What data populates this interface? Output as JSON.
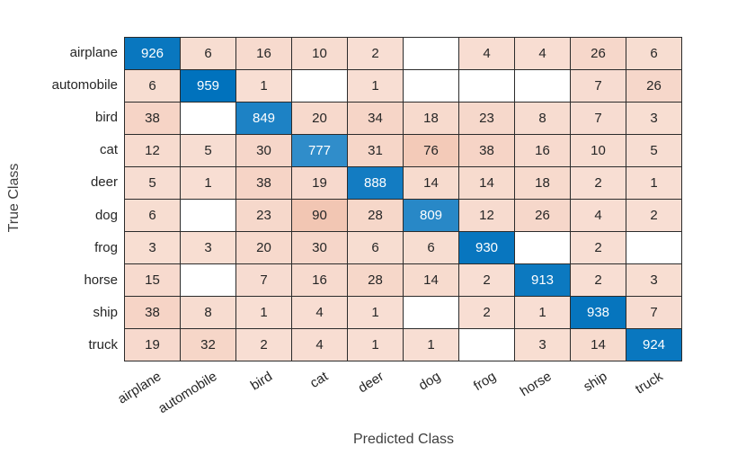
{
  "colors": {
    "background": "#FFFFFF",
    "diagonal_base": "#0072BD",
    "off_diagonal_base": "#D95319",
    "zero_cell": "#FFFFFF",
    "grid_line": "#2B2B2B",
    "cell_text": "#262626",
    "diagonal_cell_text": "#FFFFFF",
    "tick_label_text": "#262626",
    "axis_title_text": "#3F3F3F"
  },
  "chart_data": {
    "type": "heatmap",
    "subtype": "confusion-matrix",
    "title": "",
    "xlabel": "Predicted Class",
    "ylabel": "True Class",
    "legend": "none",
    "grid": true,
    "classes": [
      "airplane",
      "automobile",
      "bird",
      "cat",
      "deer",
      "dog",
      "frog",
      "horse",
      "ship",
      "truck"
    ],
    "matrix": [
      [
        926,
        6,
        16,
        10,
        2,
        null,
        4,
        4,
        26,
        6
      ],
      [
        6,
        959,
        1,
        null,
        1,
        null,
        null,
        null,
        7,
        26
      ],
      [
        38,
        null,
        849,
        20,
        34,
        18,
        23,
        8,
        7,
        3
      ],
      [
        12,
        5,
        30,
        777,
        31,
        76,
        38,
        16,
        10,
        5
      ],
      [
        5,
        1,
        38,
        19,
        888,
        14,
        14,
        18,
        2,
        1
      ],
      [
        6,
        null,
        23,
        90,
        28,
        809,
        12,
        26,
        4,
        2
      ],
      [
        3,
        3,
        20,
        30,
        6,
        6,
        930,
        null,
        2,
        null
      ],
      [
        15,
        null,
        7,
        16,
        28,
        14,
        2,
        913,
        2,
        3
      ],
      [
        38,
        8,
        1,
        4,
        1,
        null,
        2,
        1,
        938,
        7
      ],
      [
        19,
        32,
        2,
        4,
        1,
        1,
        null,
        3,
        14,
        924
      ]
    ]
  }
}
